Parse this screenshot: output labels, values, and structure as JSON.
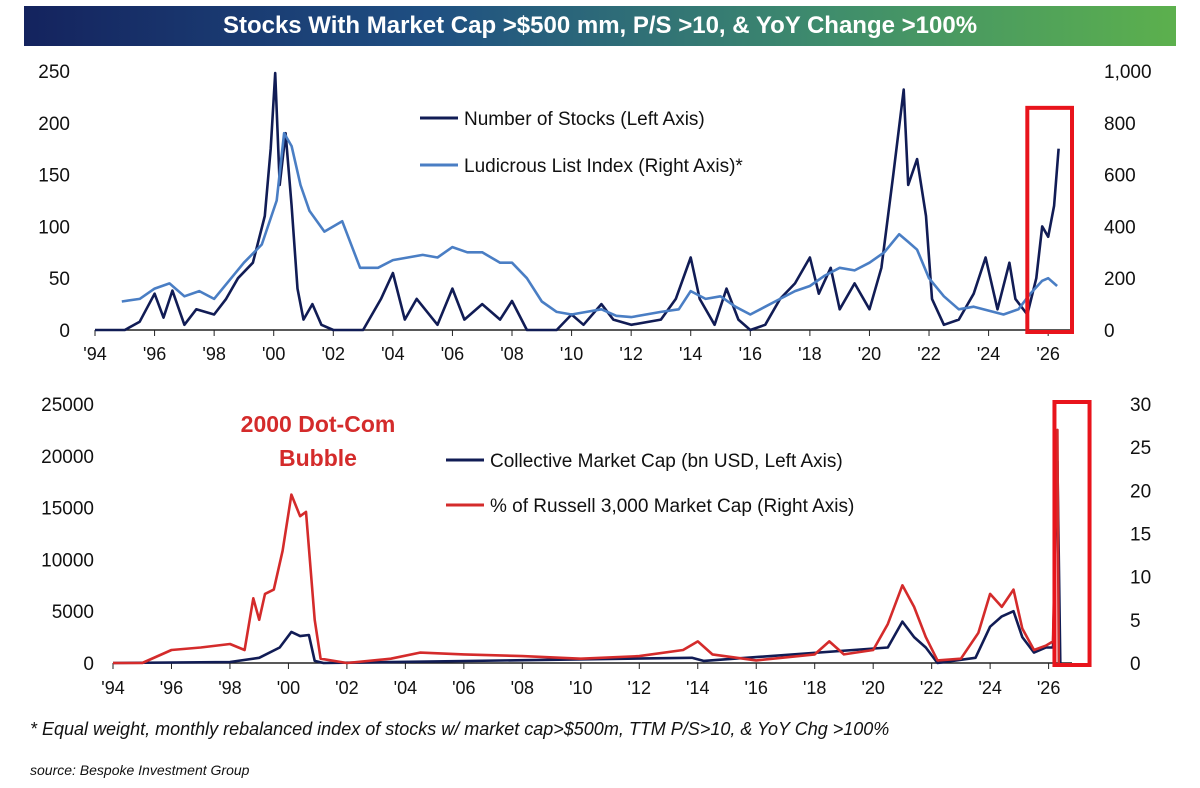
{
  "title": "Stocks With Market Cap >$500 mm, P/S >10, & YoY Change >100%",
  "footnote": "* Equal weight, monthly rebalanced index of stocks w/ market cap>$500m, TTM P/S>10, & YoY Chg >100%",
  "source": "source: Bespoke Investment Group",
  "colors": {
    "navy": "#111c55",
    "light_blue": "#4a7ec4",
    "red": "#d42b2b",
    "highlight_box": "#e8141c"
  },
  "chart_data": [
    {
      "type": "line",
      "x_ticks": [
        "'94",
        "'96",
        "'98",
        "'00",
        "'02",
        "'04",
        "'06",
        "'08",
        "'10",
        "'12",
        "'14",
        "'16",
        "'18",
        "'20",
        "'22",
        "'24",
        "'26"
      ],
      "xlim": [
        1994,
        2026.8
      ],
      "y_left": {
        "lim": [
          0,
          250
        ],
        "ticks": [
          "0",
          "50",
          "100",
          "150",
          "200",
          "250"
        ]
      },
      "y_right": {
        "lim": [
          0,
          1000
        ],
        "ticks": [
          "0",
          "200",
          "400",
          "600",
          "800",
          "1,000"
        ]
      },
      "highlight": {
        "x": [
          2025.3,
          2026.8
        ],
        "y_right": [
          0,
          850
        ]
      },
      "series": [
        {
          "name": "Number of Stocks (Left Axis)",
          "axis": "left",
          "color": "#111c55",
          "points": [
            [
              1994.0,
              0
            ],
            [
              1995.0,
              0
            ],
            [
              1995.5,
              8
            ],
            [
              1996.0,
              35
            ],
            [
              1996.3,
              12
            ],
            [
              1996.6,
              38
            ],
            [
              1997.0,
              5
            ],
            [
              1997.4,
              20
            ],
            [
              1998.0,
              15
            ],
            [
              1998.4,
              30
            ],
            [
              1998.8,
              50
            ],
            [
              1999.3,
              65
            ],
            [
              1999.7,
              110
            ],
            [
              1999.9,
              175
            ],
            [
              2000.05,
              248
            ],
            [
              2000.2,
              140
            ],
            [
              2000.4,
              190
            ],
            [
              2000.6,
              120
            ],
            [
              2000.8,
              40
            ],
            [
              2001.0,
              10
            ],
            [
              2001.3,
              25
            ],
            [
              2001.6,
              5
            ],
            [
              2002.0,
              0
            ],
            [
              2003.0,
              0
            ],
            [
              2003.6,
              30
            ],
            [
              2004.0,
              55
            ],
            [
              2004.4,
              10
            ],
            [
              2004.8,
              30
            ],
            [
              2005.5,
              5
            ],
            [
              2006.0,
              40
            ],
            [
              2006.4,
              10
            ],
            [
              2007.0,
              25
            ],
            [
              2007.6,
              10
            ],
            [
              2008.0,
              28
            ],
            [
              2008.5,
              0
            ],
            [
              2009.5,
              0
            ],
            [
              2010.0,
              15
            ],
            [
              2010.4,
              5
            ],
            [
              2011.0,
              25
            ],
            [
              2011.4,
              10
            ],
            [
              2012.0,
              5
            ],
            [
              2013.0,
              10
            ],
            [
              2013.5,
              30
            ],
            [
              2014.0,
              70
            ],
            [
              2014.3,
              30
            ],
            [
              2014.8,
              5
            ],
            [
              2015.2,
              40
            ],
            [
              2015.6,
              10
            ],
            [
              2016.0,
              0
            ],
            [
              2016.5,
              5
            ],
            [
              2017.0,
              30
            ],
            [
              2017.5,
              45
            ],
            [
              2018.0,
              70
            ],
            [
              2018.3,
              35
            ],
            [
              2018.7,
              60
            ],
            [
              2019.0,
              20
            ],
            [
              2019.5,
              45
            ],
            [
              2020.0,
              20
            ],
            [
              2020.4,
              60
            ],
            [
              2020.8,
              150
            ],
            [
              2021.15,
              232
            ],
            [
              2021.3,
              140
            ],
            [
              2021.6,
              165
            ],
            [
              2021.9,
              110
            ],
            [
              2022.1,
              30
            ],
            [
              2022.5,
              5
            ],
            [
              2023.0,
              10
            ],
            [
              2023.5,
              35
            ],
            [
              2023.9,
              70
            ],
            [
              2024.3,
              20
            ],
            [
              2024.7,
              65
            ],
            [
              2024.9,
              30
            ],
            [
              2025.3,
              15
            ],
            [
              2025.6,
              50
            ],
            [
              2025.8,
              100
            ],
            [
              2026.0,
              90
            ],
            [
              2026.2,
              120
            ],
            [
              2026.35,
              175
            ]
          ]
        },
        {
          "name": "Ludicrous List Index (Right Axis)*",
          "axis": "right",
          "color": "#4a7ec4",
          "points": [
            [
              1994.9,
              110
            ],
            [
              1995.5,
              120
            ],
            [
              1996.0,
              160
            ],
            [
              1996.5,
              180
            ],
            [
              1997.0,
              130
            ],
            [
              1997.5,
              150
            ],
            [
              1998.0,
              120
            ],
            [
              1998.5,
              190
            ],
            [
              1999.0,
              260
            ],
            [
              1999.6,
              330
            ],
            [
              2000.1,
              500
            ],
            [
              2000.35,
              760
            ],
            [
              2000.6,
              710
            ],
            [
              2000.9,
              560
            ],
            [
              2001.2,
              460
            ],
            [
              2001.7,
              380
            ],
            [
              2002.3,
              420
            ],
            [
              2002.9,
              240
            ],
            [
              2003.5,
              240
            ],
            [
              2004.0,
              270
            ],
            [
              2004.5,
              280
            ],
            [
              2005.0,
              290
            ],
            [
              2005.5,
              280
            ],
            [
              2006.0,
              320
            ],
            [
              2006.5,
              300
            ],
            [
              2007.0,
              300
            ],
            [
              2007.6,
              260
            ],
            [
              2008.0,
              260
            ],
            [
              2008.5,
              200
            ],
            [
              2009.0,
              110
            ],
            [
              2009.5,
              70
            ],
            [
              2010.0,
              60
            ],
            [
              2010.5,
              70
            ],
            [
              2011.0,
              80
            ],
            [
              2011.5,
              55
            ],
            [
              2012.0,
              50
            ],
            [
              2013.0,
              70
            ],
            [
              2013.6,
              80
            ],
            [
              2014.0,
              150
            ],
            [
              2014.5,
              120
            ],
            [
              2015.0,
              130
            ],
            [
              2015.5,
              90
            ],
            [
              2016.0,
              60
            ],
            [
              2016.5,
              90
            ],
            [
              2017.0,
              120
            ],
            [
              2017.5,
              150
            ],
            [
              2018.0,
              170
            ],
            [
              2018.5,
              210
            ],
            [
              2019.0,
              240
            ],
            [
              2019.5,
              230
            ],
            [
              2020.0,
              260
            ],
            [
              2020.5,
              300
            ],
            [
              2021.0,
              370
            ],
            [
              2021.3,
              340
            ],
            [
              2021.6,
              310
            ],
            [
              2022.0,
              200
            ],
            [
              2022.5,
              130
            ],
            [
              2023.0,
              80
            ],
            [
              2023.5,
              90
            ],
            [
              2024.0,
              75
            ],
            [
              2024.5,
              60
            ],
            [
              2025.0,
              80
            ],
            [
              2025.4,
              140
            ],
            [
              2025.8,
              190
            ],
            [
              2026.0,
              200
            ],
            [
              2026.3,
              170
            ]
          ]
        }
      ]
    },
    {
      "type": "line",
      "x_ticks": [
        "'94",
        "'96",
        "'98",
        "'00",
        "'02",
        "'04",
        "'06",
        "'08",
        "'10",
        "'12",
        "'14",
        "'16",
        "'18",
        "'20",
        "'22",
        "'24",
        "'26"
      ],
      "xlim": [
        1994,
        2026.8
      ],
      "y_left": {
        "lim": [
          0,
          25000
        ],
        "ticks": [
          "0",
          "5000",
          "10000",
          "15000",
          "20000",
          "25000"
        ]
      },
      "y_right": {
        "lim": [
          0,
          30
        ],
        "ticks": [
          "0",
          "5",
          "10",
          "15",
          "20",
          "25",
          "30"
        ]
      },
      "annotation": [
        "2000 Dot-Com",
        "Bubble"
      ],
      "highlight": {
        "x": [
          2026.2,
          2027.4
        ],
        "y_right": [
          0,
          30
        ]
      },
      "series": [
        {
          "name": "Collective Market Cap (bn USD, Left Axis)",
          "axis": "left",
          "color": "#111c55",
          "points": [
            [
              1994.0,
              0
            ],
            [
              1998.0,
              100
            ],
            [
              1999.0,
              500
            ],
            [
              1999.7,
              1500
            ],
            [
              2000.1,
              3000
            ],
            [
              2000.4,
              2600
            ],
            [
              2000.7,
              2700
            ],
            [
              2000.9,
              200
            ],
            [
              2001.2,
              0
            ],
            [
              2013.8,
              500
            ],
            [
              2014.2,
              200
            ],
            [
              2020.5,
              1500
            ],
            [
              2021.0,
              4000
            ],
            [
              2021.4,
              2500
            ],
            [
              2021.8,
              1500
            ],
            [
              2022.2,
              0
            ],
            [
              2023.5,
              500
            ],
            [
              2024.0,
              3500
            ],
            [
              2024.4,
              4500
            ],
            [
              2024.8,
              5000
            ],
            [
              2025.1,
              2500
            ],
            [
              2025.5,
              1000
            ],
            [
              2025.9,
              1500
            ],
            [
              2026.15,
              1500
            ],
            [
              2026.3,
              19500
            ],
            [
              2026.4,
              0
            ]
          ]
        },
        {
          "name": "% of Russell 3,000 Market Cap (Right Axis)",
          "axis": "right",
          "color": "#d42b2b",
          "points": [
            [
              1994.0,
              0
            ],
            [
              1995.0,
              0
            ],
            [
              1996.0,
              1.5
            ],
            [
              1997.0,
              1.8
            ],
            [
              1998.0,
              2.2
            ],
            [
              1998.5,
              1.5
            ],
            [
              1998.8,
              7.5
            ],
            [
              1999.0,
              5.0
            ],
            [
              1999.2,
              8.0
            ],
            [
              1999.5,
              8.5
            ],
            [
              1999.8,
              13.0
            ],
            [
              2000.1,
              19.5
            ],
            [
              2000.4,
              17.0
            ],
            [
              2000.6,
              17.5
            ],
            [
              2000.9,
              5.0
            ],
            [
              2001.1,
              0.5
            ],
            [
              2002.0,
              0
            ],
            [
              2003.5,
              0.5
            ],
            [
              2004.5,
              1.2
            ],
            [
              2006.0,
              1.0
            ],
            [
              2008.0,
              0.8
            ],
            [
              2010.0,
              0.5
            ],
            [
              2012.0,
              0.8
            ],
            [
              2013.5,
              1.5
            ],
            [
              2014.0,
              2.5
            ],
            [
              2014.5,
              1.0
            ],
            [
              2016.0,
              0.3
            ],
            [
              2018.0,
              1.0
            ],
            [
              2018.5,
              2.5
            ],
            [
              2019.0,
              1.0
            ],
            [
              2020.0,
              1.5
            ],
            [
              2020.5,
              4.5
            ],
            [
              2021.0,
              9.0
            ],
            [
              2021.4,
              6.5
            ],
            [
              2021.8,
              3.0
            ],
            [
              2022.2,
              0.3
            ],
            [
              2023.0,
              0.5
            ],
            [
              2023.6,
              3.5
            ],
            [
              2024.0,
              8.0
            ],
            [
              2024.4,
              6.5
            ],
            [
              2024.8,
              8.5
            ],
            [
              2025.1,
              4.0
            ],
            [
              2025.5,
              1.5
            ],
            [
              2025.9,
              2.0
            ],
            [
              2026.15,
              2.5
            ],
            [
              2026.3,
              27.0
            ],
            [
              2026.35,
              0
            ]
          ]
        }
      ]
    }
  ]
}
